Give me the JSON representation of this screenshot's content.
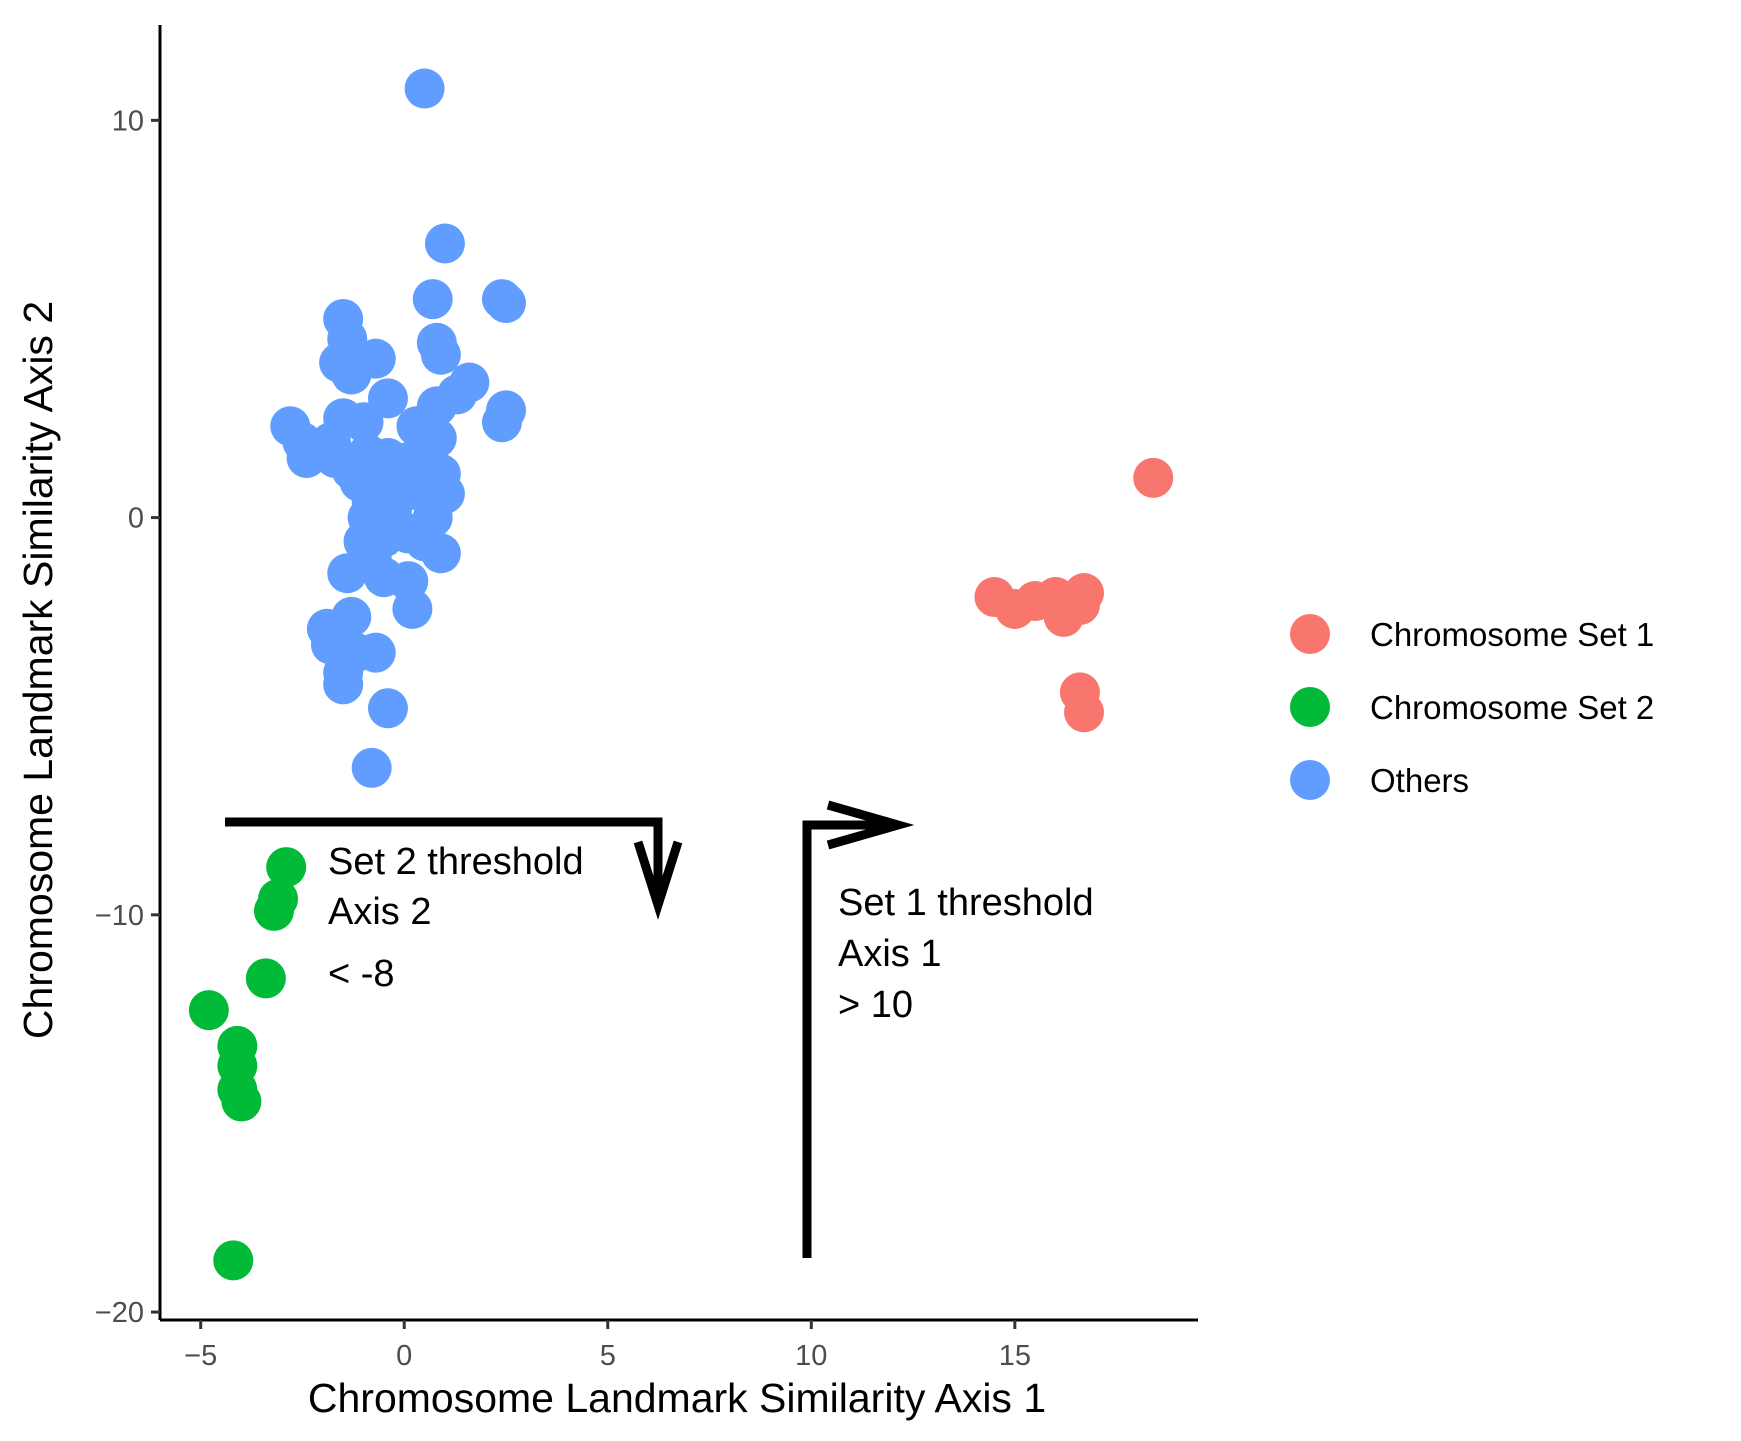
{
  "chart_data": {
    "type": "scatter",
    "title": "",
    "xlabel": "Chromosome Landmark Similarity Axis 1",
    "ylabel": "Chromosome Landmark Similarity Axis 2",
    "xlim": [
      -6.0,
      19.5
    ],
    "ylim": [
      -20.2,
      12.4
    ],
    "xticks": [
      -5,
      0,
      5,
      10,
      15
    ],
    "yticks": [
      -20,
      -10,
      0,
      10
    ],
    "xtick_labels": [
      "−5",
      "0",
      "5",
      "10",
      "15"
    ],
    "ytick_labels": [
      "−20",
      "−10",
      "0",
      "10"
    ],
    "grid": false,
    "legend_position": "right",
    "series": [
      {
        "name": "Chromosome Set 1",
        "color": "#F8766D",
        "points": [
          [
            18.4,
            1.0
          ],
          [
            14.5,
            -2.0
          ],
          [
            15.0,
            -2.3
          ],
          [
            15.5,
            -2.1
          ],
          [
            16.0,
            -2.0
          ],
          [
            16.2,
            -2.5
          ],
          [
            16.6,
            -2.2
          ],
          [
            16.7,
            -1.9
          ],
          [
            16.6,
            -4.4
          ],
          [
            16.7,
            -4.9
          ]
        ]
      },
      {
        "name": "Chromosome Set 2",
        "color": "#00BA38",
        "points": [
          [
            -2.9,
            -8.8
          ],
          [
            -3.1,
            -9.6
          ],
          [
            -3.2,
            -9.9
          ],
          [
            -3.4,
            -11.6
          ],
          [
            -4.8,
            -12.4
          ],
          [
            -4.1,
            -13.3
          ],
          [
            -4.1,
            -13.8
          ],
          [
            -4.1,
            -14.4
          ],
          [
            -4.0,
            -14.7
          ],
          [
            -4.2,
            -18.7
          ]
        ]
      },
      {
        "name": "Others",
        "color": "#619CFF",
        "points": [
          [
            0.5,
            10.8
          ],
          [
            1.0,
            6.9
          ],
          [
            0.7,
            5.5
          ],
          [
            2.4,
            5.5
          ],
          [
            2.5,
            5.4
          ],
          [
            -1.5,
            5.0
          ],
          [
            -1.4,
            4.5
          ],
          [
            -0.7,
            4.0
          ],
          [
            0.8,
            4.4
          ],
          [
            0.9,
            4.1
          ],
          [
            -1.6,
            3.9
          ],
          [
            -1.3,
            3.6
          ],
          [
            1.6,
            3.4
          ],
          [
            1.3,
            3.1
          ],
          [
            -0.4,
            3.0
          ],
          [
            0.8,
            2.8
          ],
          [
            2.5,
            2.7
          ],
          [
            2.4,
            2.4
          ],
          [
            -2.8,
            2.3
          ],
          [
            -1.5,
            2.5
          ],
          [
            -1.0,
            2.4
          ],
          [
            0.3,
            2.3
          ],
          [
            -2.5,
            1.9
          ],
          [
            -2.2,
            1.7
          ],
          [
            -1.8,
            1.9
          ],
          [
            0.8,
            2.0
          ],
          [
            -2.4,
            1.5
          ],
          [
            -1.7,
            1.5
          ],
          [
            -1.3,
            1.2
          ],
          [
            -0.9,
            1.6
          ],
          [
            -0.4,
            1.5
          ],
          [
            0.1,
            1.4
          ],
          [
            0.5,
            1.6
          ],
          [
            -1.1,
            0.9
          ],
          [
            -0.6,
            0.8
          ],
          [
            0.9,
            1.1
          ],
          [
            -0.8,
            0.4
          ],
          [
            0.2,
            0.7
          ],
          [
            1.0,
            0.6
          ],
          [
            -0.9,
            0.0
          ],
          [
            -0.3,
            0.2
          ],
          [
            0.7,
            0.0
          ],
          [
            -1.0,
            -0.6
          ],
          [
            -0.5,
            -0.5
          ],
          [
            0.1,
            -0.4
          ],
          [
            0.5,
            -0.6
          ],
          [
            -0.8,
            -1.0
          ],
          [
            0.9,
            -0.9
          ],
          [
            -1.4,
            -1.4
          ],
          [
            -0.5,
            -1.5
          ],
          [
            0.1,
            -1.6
          ],
          [
            0.2,
            -2.3
          ],
          [
            -1.3,
            -2.5
          ],
          [
            -1.9,
            -2.8
          ],
          [
            -1.6,
            -3.1
          ],
          [
            -1.8,
            -3.2
          ],
          [
            -1.2,
            -3.4
          ],
          [
            -0.7,
            -3.4
          ],
          [
            -1.5,
            -3.9
          ],
          [
            -1.5,
            -4.2
          ],
          [
            -0.4,
            -4.8
          ],
          [
            -0.8,
            -6.3
          ]
        ]
      }
    ],
    "annotations": [
      {
        "lines": [
          "Set 2 threshold",
          "Axis 2",
          "< -8"
        ]
      },
      {
        "lines": [
          "Set 1 threshold",
          "Axis 1",
          "> 10"
        ]
      }
    ]
  }
}
